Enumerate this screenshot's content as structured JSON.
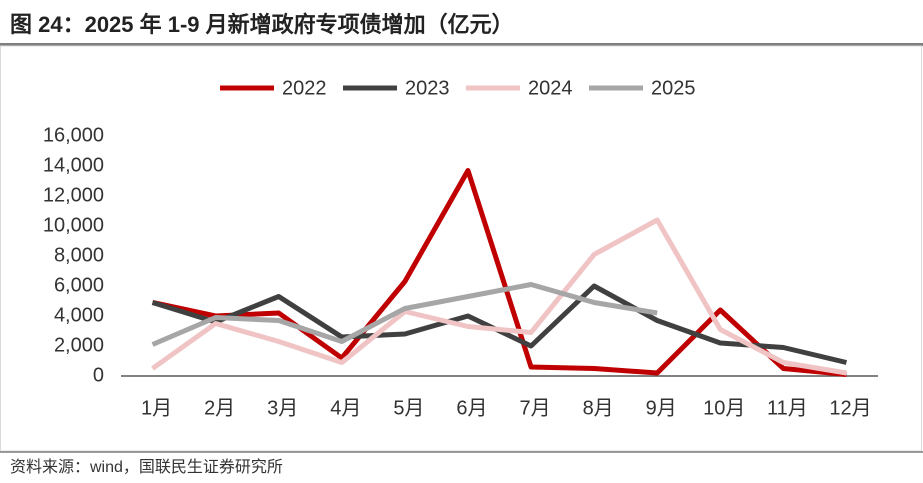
{
  "chart_data": {
    "type": "line",
    "title": "图 24：2025 年 1-9 月新增政府专项债增加（亿元）",
    "source": "资料来源：wind，国联民生证券研究所",
    "categories": [
      "1月",
      "2月",
      "3月",
      "4月",
      "5月",
      "6月",
      "7月",
      "8月",
      "9月",
      "10月",
      "11月",
      "12月"
    ],
    "series": [
      {
        "name": "2022",
        "color": "#c00000",
        "values": [
          4900,
          4000,
          4200,
          1200,
          6300,
          13700,
          600,
          500,
          200,
          4400,
          500,
          100
        ]
      },
      {
        "name": "2023",
        "color": "#404040",
        "values": [
          4900,
          3600,
          5300,
          2600,
          2800,
          4000,
          2000,
          6000,
          3700,
          2200,
          1900,
          900
        ]
      },
      {
        "name": "2024",
        "color": "#f0c4c4",
        "values": [
          500,
          3500,
          2300,
          900,
          4300,
          3300,
          2900,
          8100,
          10400,
          3100,
          900,
          200
        ]
      },
      {
        "name": "2025",
        "color": "#a6a6a6",
        "values": [
          2100,
          3900,
          3700,
          2300,
          4500,
          5300,
          6100,
          4900,
          4200,
          null,
          null,
          null
        ]
      }
    ],
    "ylim": [
      0,
      16000
    ],
    "yticks": [
      0,
      {
        "value": 2000,
        "label": "2,000"
      },
      {
        "value": 4000,
        "label": "4,000"
      },
      {
        "value": 6000,
        "label": "6,000"
      },
      {
        "value": 8000,
        "label": "8,000"
      },
      {
        "value": 10000,
        "label": "10,000"
      },
      {
        "value": 12000,
        "label": "12,000"
      },
      {
        "value": 14000,
        "label": "14,000"
      },
      {
        "value": 16000,
        "label": "16,000"
      }
    ],
    "grid": false,
    "legend": "top"
  }
}
